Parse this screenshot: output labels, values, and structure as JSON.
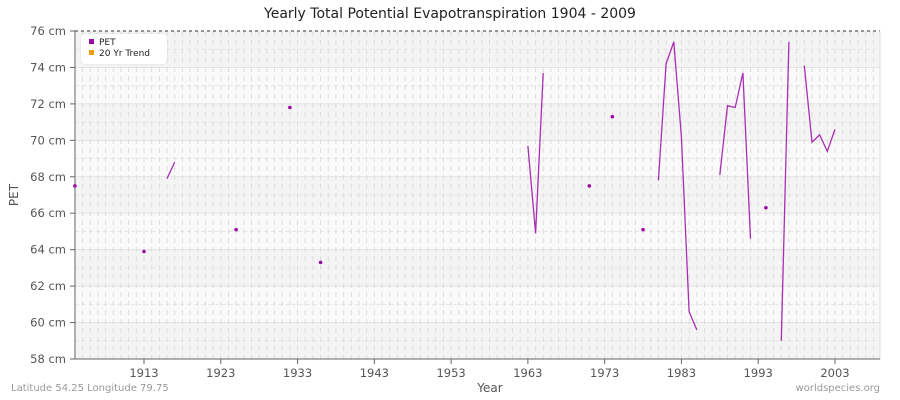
{
  "title": "Yearly Total Potential Evapotranspiration 1904 - 2009",
  "footer": {
    "location": "Latitude 54.25 Longitude 79.75",
    "source": "worldspecies.org"
  },
  "legend": {
    "items": [
      {
        "label": "PET",
        "color": "#9b0aa8"
      },
      {
        "label": "20 Yr Trend",
        "color": "#f39c12"
      }
    ]
  },
  "axes": {
    "xlabel": "Year",
    "ylabel": "PET",
    "xticks": [
      "1913",
      "1923",
      "1933",
      "1943",
      "1953",
      "1963",
      "1973",
      "1983",
      "1993",
      "2003"
    ],
    "yticks": [
      "58 cm",
      "60 cm",
      "62 cm",
      "64 cm",
      "66 cm",
      "68 cm",
      "70 cm",
      "72 cm",
      "74 cm",
      "76 cm"
    ]
  },
  "chart_data": {
    "type": "line",
    "title": "Yearly Total Potential Evapotranspiration 1904 - 2009",
    "xlabel": "Year",
    "ylabel": "PET",
    "xlim": [
      1904,
      2009
    ],
    "ylim": [
      58,
      76
    ],
    "y_unit": "cm",
    "grid": true,
    "legend_position": "top-left",
    "series": [
      {
        "name": "PET",
        "color": "#9b0aa8",
        "segments": [
          [
            [
              1904,
              67.5
            ]
          ],
          [
            [
              1913,
              63.9
            ]
          ],
          [
            [
              1916,
              67.9
            ],
            [
              1917,
              68.8
            ]
          ],
          [
            [
              1925,
              65.1
            ]
          ],
          [
            [
              1932,
              71.8
            ]
          ],
          [
            [
              1936,
              63.3
            ]
          ],
          [
            [
              1963,
              69.7
            ],
            [
              1964,
              64.9
            ],
            [
              1965,
              73.7
            ]
          ],
          [
            [
              1971,
              67.5
            ]
          ],
          [
            [
              1974,
              71.3
            ]
          ],
          [
            [
              1978,
              65.1
            ]
          ],
          [
            [
              1980,
              67.8
            ],
            [
              1981,
              74.2
            ],
            [
              1982,
              75.4
            ],
            [
              1983,
              70.2
            ],
            [
              1984,
              60.6
            ],
            [
              1985,
              59.6
            ]
          ],
          [
            [
              1988,
              68.1
            ],
            [
              1989,
              71.9
            ],
            [
              1990,
              71.8
            ],
            [
              1991,
              73.7
            ],
            [
              1992,
              64.6
            ]
          ],
          [
            [
              1994,
              66.3
            ]
          ],
          [
            [
              1996,
              59.0
            ],
            [
              1997,
              75.4
            ]
          ],
          [
            [
              1999,
              74.1
            ],
            [
              2000,
              69.9
            ],
            [
              2001,
              70.3
            ],
            [
              2002,
              69.4
            ],
            [
              2003,
              70.6
            ]
          ]
        ]
      },
      {
        "name": "20 Yr Trend",
        "color": "#f39c12",
        "segments": []
      }
    ]
  }
}
